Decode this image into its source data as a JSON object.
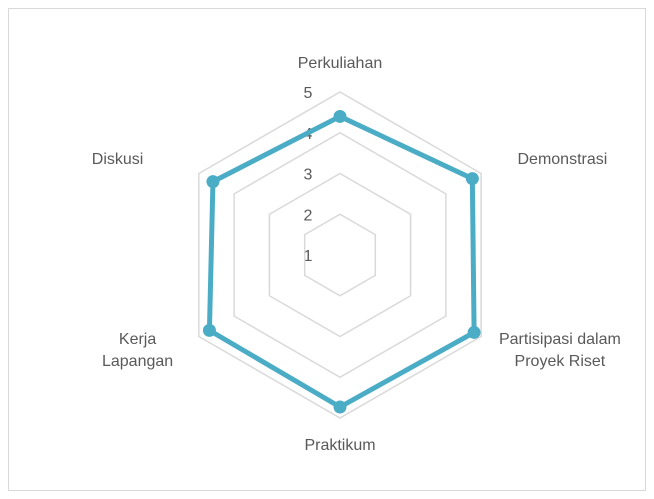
{
  "chart_data": {
    "type": "radar",
    "categories": [
      "Perkuliahan",
      "Demonstrasi",
      "Partisipasi dalam Proyek Riset",
      "Praktikum",
      "Kerja Lapangan",
      "Diskusi"
    ],
    "series": [
      {
        "name": null,
        "color": "#4bacc6",
        "values": [
          4.4,
          4.75,
          4.8,
          4.73,
          4.7,
          4.6
        ]
      }
    ],
    "rlim": [
      1,
      5
    ],
    "rticks": [
      1,
      2,
      3,
      4,
      5
    ],
    "grid": true
  }
}
